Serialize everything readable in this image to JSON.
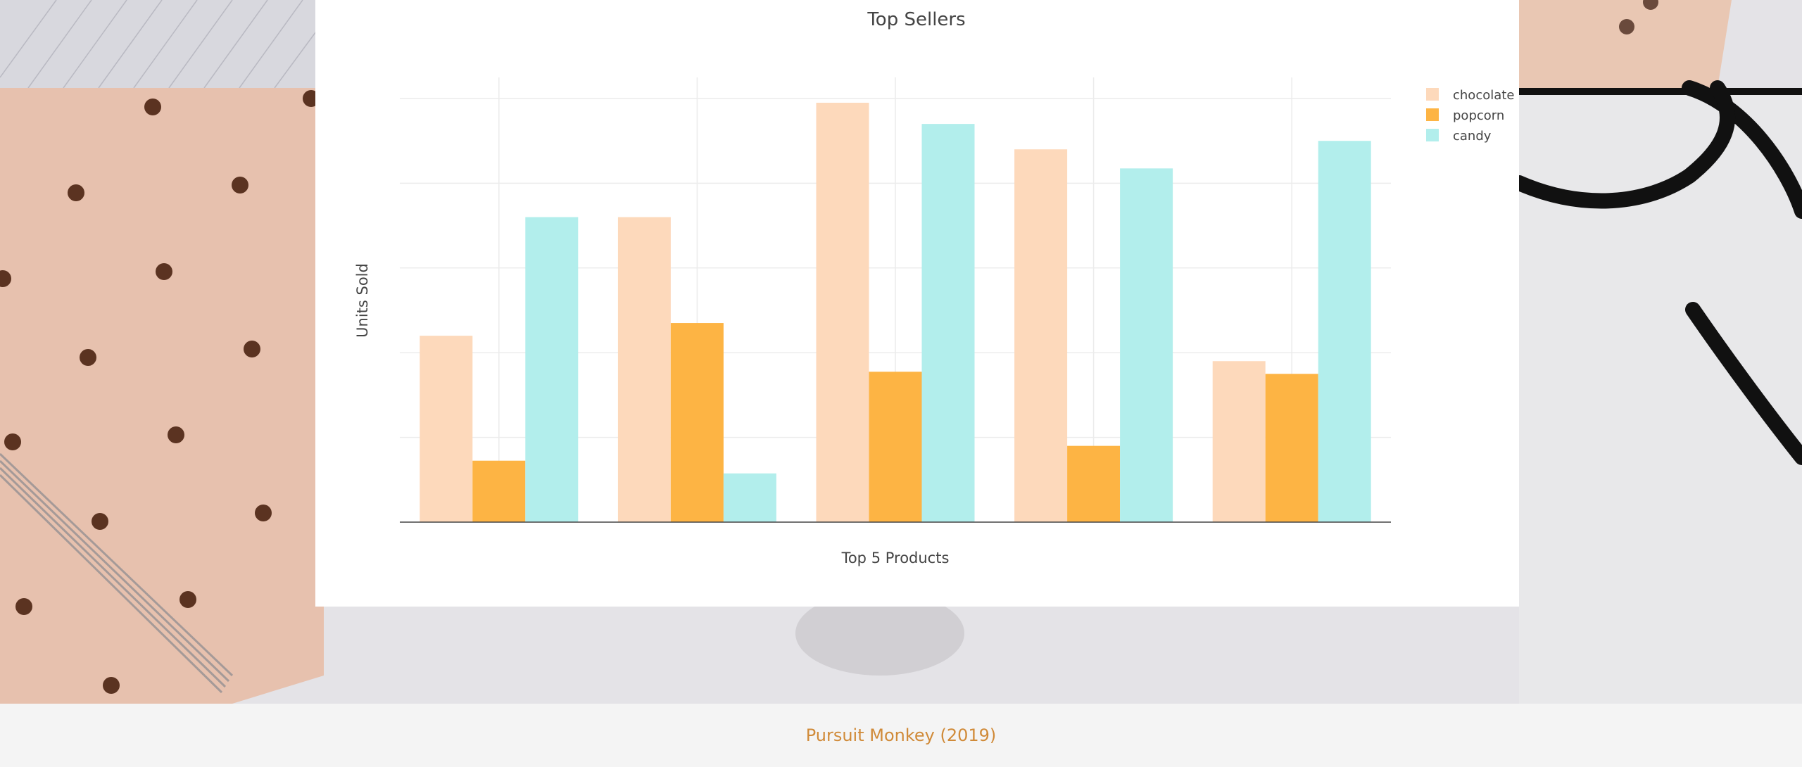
{
  "footer": {
    "text": "Pursuit Monkey (2019)"
  },
  "chart_data": {
    "type": "bar",
    "title": "Top Sellers",
    "xlabel": "Top 5 Products",
    "ylabel": "Units Sold",
    "categories": [
      "",
      "",
      "",
      "",
      ""
    ],
    "ylim": [
      0,
      100
    ],
    "grid": true,
    "legend_position": "top-right",
    "series": [
      {
        "name": "chocolate",
        "color": "#fdd9bb",
        "values": [
          44,
          72,
          99,
          88,
          38
        ]
      },
      {
        "name": "popcorn",
        "color": "#fdb444",
        "values": [
          14.5,
          47,
          35.5,
          18,
          35
        ]
      },
      {
        "name": "candy",
        "color": "#b2eeec",
        "values": [
          72,
          11.5,
          94,
          83.5,
          90
        ]
      }
    ]
  }
}
